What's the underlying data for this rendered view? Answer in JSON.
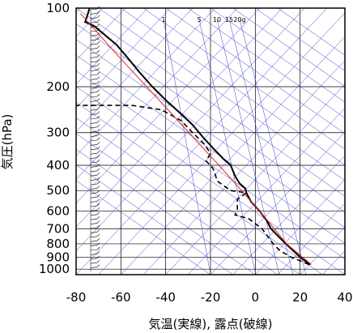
{
  "chart_data": {
    "type": "line",
    "xlabel": "気温(実線), 露点(破線)",
    "ylabel": "気圧(hPa)",
    "xlim": [
      -80,
      40
    ],
    "ylim": [
      1050,
      100
    ],
    "y_scale": "log",
    "x_ticks": [
      -80,
      -60,
      -40,
      -20,
      0,
      20,
      40
    ],
    "y_ticks": [
      100,
      200,
      300,
      400,
      500,
      600,
      700,
      800,
      900,
      1000
    ],
    "mixing_ratio_labels": [
      "1",
      "5",
      "10",
      "15",
      "20g"
    ],
    "colors": {
      "temperature": "#000000",
      "dewpoint": "#000000",
      "reference": "#e02020",
      "isotherm_adiabat": "#3a3ad0",
      "grid": "#000000"
    },
    "series": [
      {
        "line_style": "solid",
        "points": [
          {
            "t": 24.5,
            "p": 960
          },
          {
            "t": 20,
            "p": 900
          },
          {
            "t": 15,
            "p": 820
          },
          {
            "t": 11,
            "p": 760
          },
          {
            "t": 7,
            "p": 700
          },
          {
            "t": 5,
            "p": 650
          },
          {
            "t": 2,
            "p": 600
          },
          {
            "t": -2,
            "p": 550
          },
          {
            "t": -4,
            "p": 510
          },
          {
            "t": -4.5,
            "p": 490
          },
          {
            "t": -7,
            "p": 470
          },
          {
            "t": -9,
            "p": 440
          },
          {
            "t": -11,
            "p": 400
          },
          {
            "t": -14,
            "p": 380
          },
          {
            "t": -18,
            "p": 350
          },
          {
            "t": -23,
            "p": 315
          },
          {
            "t": -28,
            "p": 280
          },
          {
            "t": -33,
            "p": 255
          },
          {
            "t": -40,
            "p": 225
          },
          {
            "t": -46,
            "p": 200
          },
          {
            "t": -52,
            "p": 175
          },
          {
            "t": -57,
            "p": 155
          },
          {
            "t": -62,
            "p": 138
          },
          {
            "t": -68,
            "p": 125
          },
          {
            "t": -72,
            "p": 117
          },
          {
            "t": -76,
            "p": 113
          },
          {
            "t": -75,
            "p": 107
          },
          {
            "t": -74,
            "p": 100
          }
        ]
      },
      {
        "line_style": "dashed",
        "points": [
          {
            "t": 24,
            "p": 960
          },
          {
            "t": 16,
            "p": 900
          },
          {
            "t": 11,
            "p": 850
          },
          {
            "t": 8,
            "p": 800
          },
          {
            "t": 3,
            "p": 700
          },
          {
            "t": -3,
            "p": 640
          },
          {
            "t": -9,
            "p": 620
          },
          {
            "t": -8,
            "p": 590
          },
          {
            "t": -8,
            "p": 540
          },
          {
            "t": -4,
            "p": 510
          },
          {
            "t": -11,
            "p": 500
          },
          {
            "t": -17,
            "p": 460
          },
          {
            "t": -18,
            "p": 430
          },
          {
            "t": -19,
            "p": 410
          },
          {
            "t": -22,
            "p": 385
          },
          {
            "t": -20,
            "p": 360
          },
          {
            "t": -23,
            "p": 330
          },
          {
            "t": -28,
            "p": 300
          },
          {
            "t": -33,
            "p": 270
          },
          {
            "t": -42,
            "p": 245
          },
          {
            "t": -55,
            "p": 236
          },
          {
            "t": -80,
            "p": 236
          }
        ]
      },
      {
        "line_style": "solid",
        "points": [
          {
            "t": 25,
            "p": 960
          },
          {
            "t": 14,
            "p": 800
          },
          {
            "t": 2,
            "p": 600
          },
          {
            "t": -14,
            "p": 420
          },
          {
            "t": -40,
            "p": 240
          },
          {
            "t": -62,
            "p": 150
          },
          {
            "t": -78,
            "p": 105
          }
        ]
      }
    ]
  }
}
